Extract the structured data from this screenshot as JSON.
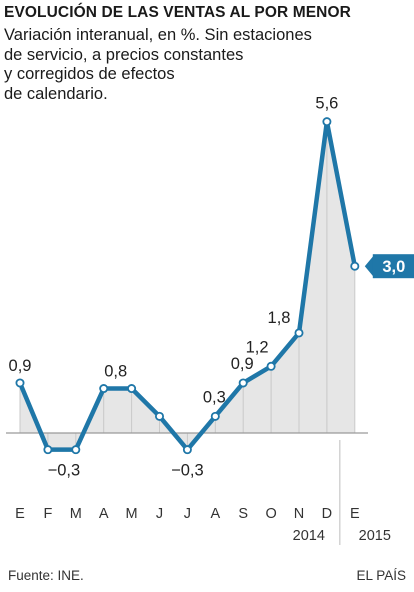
{
  "title": "EVOLUCIÓN DE LAS VENTAS AL POR MENOR",
  "subtitle_lines": [
    "Variación interanual, en %. Sin estaciones",
    "de servicio, a precios constantes",
    "y corregidos de efectos",
    "de calendario."
  ],
  "source": "Fuente: INE.",
  "brand": "EL PAÍS",
  "colors": {
    "line": "#1f77a8",
    "fill": "#e6e6e6",
    "badge": "#1f77a8",
    "axis": "#9a9a9a"
  },
  "chart_data": {
    "type": "area",
    "categories": [
      "E",
      "F",
      "M",
      "A",
      "M",
      "J",
      "J",
      "A",
      "S",
      "O",
      "N",
      "D",
      "E"
    ],
    "values": [
      0.9,
      -0.3,
      -0.3,
      0.8,
      0.8,
      0.3,
      -0.3,
      0.3,
      0.9,
      1.2,
      1.8,
      5.6,
      3.0
    ],
    "data_labels": [
      "0,9",
      "−0,3",
      "",
      "0,8",
      "",
      "",
      "−0,3",
      "0,3",
      "0,9",
      "1,2",
      "1,8",
      "5,6",
      "3,0"
    ],
    "year_labels": [
      "2014",
      "2015"
    ],
    "highlight_last": true,
    "ylim": [
      -0.5,
      6.0
    ],
    "grid": false,
    "xlabel": "",
    "ylabel": ""
  }
}
